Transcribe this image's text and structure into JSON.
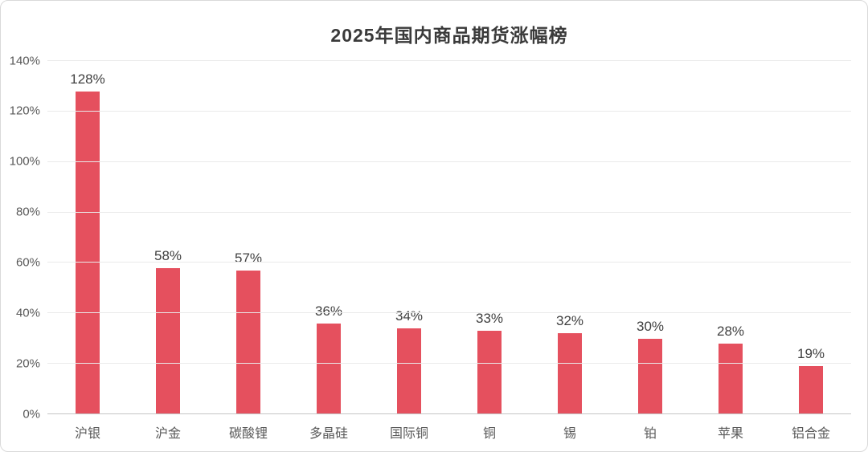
{
  "chart_data": {
    "type": "bar",
    "title": "2025年国内商品期货涨幅榜",
    "categories": [
      "沪银",
      "沪金",
      "碳酸锂",
      "多晶硅",
      "国际铜",
      "铜",
      "锡",
      "铂",
      "苹果",
      "铝合金"
    ],
    "values": [
      128,
      58,
      57,
      36,
      34,
      33,
      32,
      30,
      28,
      19
    ],
    "data_labels": [
      "128%",
      "58%",
      "57%",
      "36%",
      "34%",
      "33%",
      "32%",
      "30%",
      "28%",
      "19%"
    ],
    "xlabel": "",
    "ylabel": "",
    "ylim": [
      0,
      140
    ],
    "ytick_step": 20,
    "ytick_labels": [
      "0%",
      "20%",
      "40%",
      "60%",
      "80%",
      "100%",
      "120%",
      "140%"
    ],
    "grid": true,
    "legend": false,
    "colors": {
      "bar": "#E5505E",
      "label": "#404040",
      "axis-text": "#595959",
      "grid": "#EAEAEA",
      "baseline": "#C4C4C4",
      "border": "#D9D9D9",
      "title": "#3A3A3A",
      "bg": "#FFFFFF"
    }
  }
}
